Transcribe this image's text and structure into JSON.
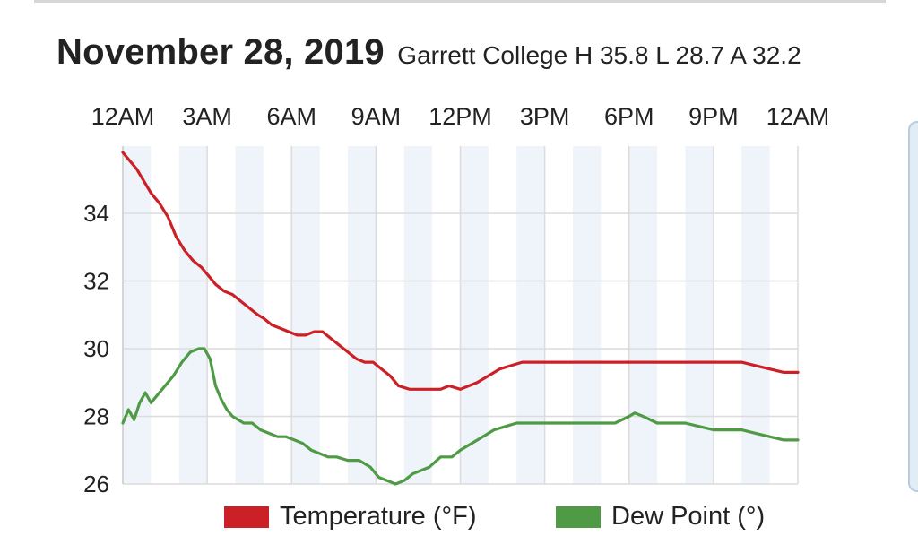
{
  "title": {
    "date": "November 28, 2019",
    "station_summary": "Garrett College H 35.8 L 28.7 A 32.2"
  },
  "colors": {
    "temperature": "#cc2027",
    "dew_point": "#4f9a45",
    "band": "#eef4fa",
    "grid": "#dcdcdc"
  },
  "chart_data": {
    "type": "line",
    "x_tick_labels": [
      "12AM",
      "3AM",
      "6AM",
      "9AM",
      "12PM",
      "3PM",
      "6PM",
      "9PM",
      "12AM"
    ],
    "x_tick_hours": [
      0,
      3,
      6,
      9,
      12,
      15,
      18,
      21,
      24
    ],
    "xlim": [
      0,
      24
    ],
    "ylim": [
      26,
      36
    ],
    "y_ticks": [
      26,
      28,
      30,
      32,
      34
    ],
    "grid": true,
    "legend_position": "bottom",
    "series": [
      {
        "name": "Temperature (°F)",
        "x": [
          0,
          0.5,
          1,
          1.3,
          1.6,
          1.9,
          2.2,
          2.5,
          2.8,
          3.1,
          3.3,
          3.6,
          3.9,
          4.2,
          4.5,
          4.8,
          5,
          5.3,
          5.6,
          5.9,
          6.2,
          6.5,
          6.8,
          7.1,
          7.4,
          7.7,
          8,
          8.3,
          8.6,
          8.9,
          9.2,
          9.5,
          9.8,
          10.2,
          10.6,
          11,
          11.3,
          11.6,
          12,
          12.3,
          12.6,
          13,
          13.4,
          13.8,
          14.2,
          14.6,
          15,
          15.5,
          16,
          16.5,
          17,
          17.5,
          18,
          18.5,
          19,
          19.5,
          20,
          20.5,
          21,
          21.5,
          22,
          22.5,
          23,
          23.5,
          24
        ],
        "values": [
          35.8,
          35.3,
          34.6,
          34.3,
          33.9,
          33.3,
          32.9,
          32.6,
          32.4,
          32.1,
          31.9,
          31.7,
          31.6,
          31.4,
          31.2,
          31,
          30.9,
          30.7,
          30.6,
          30.5,
          30.4,
          30.4,
          30.5,
          30.5,
          30.3,
          30.1,
          29.9,
          29.7,
          29.6,
          29.6,
          29.4,
          29.2,
          28.9,
          28.8,
          28.8,
          28.8,
          28.8,
          28.9,
          28.8,
          28.9,
          29,
          29.2,
          29.4,
          29.5,
          29.6,
          29.6,
          29.6,
          29.6,
          29.6,
          29.6,
          29.6,
          29.6,
          29.6,
          29.6,
          29.6,
          29.6,
          29.6,
          29.6,
          29.6,
          29.6,
          29.6,
          29.5,
          29.4,
          29.3,
          29.3
        ]
      },
      {
        "name": "Dew Point (°)",
        "x": [
          0,
          0.2,
          0.4,
          0.6,
          0.8,
          1,
          1.2,
          1.5,
          1.8,
          2.1,
          2.4,
          2.7,
          2.9,
          3.1,
          3.3,
          3.5,
          3.7,
          3.9,
          4.1,
          4.3,
          4.6,
          4.9,
          5.2,
          5.5,
          5.8,
          6.1,
          6.4,
          6.7,
          7,
          7.3,
          7.6,
          8,
          8.4,
          8.8,
          9.1,
          9.4,
          9.7,
          10,
          10.3,
          10.6,
          10.9,
          11.3,
          11.7,
          12,
          12.4,
          12.8,
          13.2,
          13.6,
          14,
          14.5,
          15,
          15.5,
          16,
          16.5,
          17,
          17.5,
          18,
          18.2,
          18.5,
          19,
          19.5,
          20,
          20.5,
          21,
          21.5,
          22,
          22.5,
          23,
          23.5,
          24
        ],
        "values": [
          27.8,
          28.2,
          27.9,
          28.4,
          28.7,
          28.4,
          28.6,
          28.9,
          29.2,
          29.6,
          29.9,
          30,
          30,
          29.7,
          28.9,
          28.5,
          28.2,
          28,
          27.9,
          27.8,
          27.8,
          27.6,
          27.5,
          27.4,
          27.4,
          27.3,
          27.2,
          27,
          26.9,
          26.8,
          26.8,
          26.7,
          26.7,
          26.5,
          26.2,
          26.1,
          26,
          26.1,
          26.3,
          26.4,
          26.5,
          26.8,
          26.8,
          27,
          27.2,
          27.4,
          27.6,
          27.7,
          27.8,
          27.8,
          27.8,
          27.8,
          27.8,
          27.8,
          27.8,
          27.8,
          28,
          28.1,
          28,
          27.8,
          27.8,
          27.8,
          27.7,
          27.6,
          27.6,
          27.6,
          27.5,
          27.4,
          27.3,
          27.3
        ]
      }
    ]
  }
}
